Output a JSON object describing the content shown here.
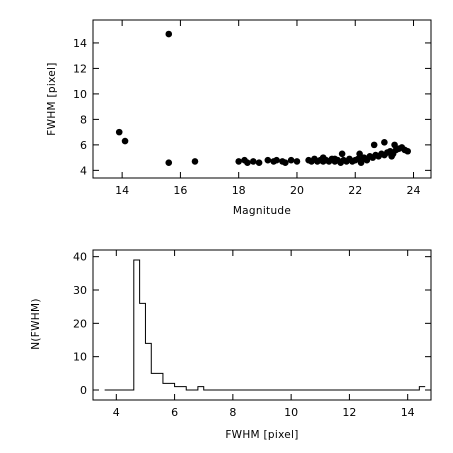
{
  "chart_data": [
    {
      "type": "scatter",
      "title": "",
      "xlabel": "Magnitude",
      "ylabel": "FWHM [pixel]",
      "xlim": [
        13,
        24.6
      ],
      "ylim": [
        3.4,
        15.8
      ],
      "xticks": [
        14,
        16,
        18,
        20,
        22,
        24
      ],
      "xtick_labels": [
        "14",
        "16",
        "18",
        "20",
        "22",
        "24"
      ],
      "yticks": [
        4,
        6,
        8,
        10,
        12,
        14
      ],
      "ytick_labels": [
        "4",
        "6",
        "8",
        "10",
        "12",
        "14"
      ],
      "grid": false,
      "marker_color": "#000000",
      "points": [
        [
          13.9,
          7.0
        ],
        [
          14.1,
          6.3
        ],
        [
          15.6,
          14.7
        ],
        [
          15.6,
          4.6
        ],
        [
          16.5,
          4.7
        ],
        [
          18.0,
          4.7
        ],
        [
          18.2,
          4.8
        ],
        [
          18.3,
          4.6
        ],
        [
          18.5,
          4.7
        ],
        [
          18.7,
          4.6
        ],
        [
          19.0,
          4.8
        ],
        [
          19.2,
          4.7
        ],
        [
          19.3,
          4.8
        ],
        [
          19.5,
          4.7
        ],
        [
          19.6,
          4.6
        ],
        [
          19.8,
          4.8
        ],
        [
          20.0,
          4.7
        ],
        [
          20.4,
          4.8
        ],
        [
          20.5,
          4.7
        ],
        [
          20.6,
          4.9
        ],
        [
          20.7,
          4.7
        ],
        [
          20.8,
          4.8
        ],
        [
          20.9,
          4.7
        ],
        [
          21.0,
          4.8
        ],
        [
          21.1,
          4.7
        ],
        [
          21.2,
          4.9
        ],
        [
          21.3,
          4.7
        ],
        [
          21.4,
          4.8
        ],
        [
          21.5,
          4.6
        ],
        [
          21.6,
          4.8
        ],
        [
          21.7,
          4.7
        ],
        [
          21.8,
          4.9
        ],
        [
          21.9,
          4.7
        ],
        [
          22.0,
          4.8
        ],
        [
          22.1,
          4.9
        ],
        [
          22.2,
          4.6
        ],
        [
          22.3,
          5.0
        ],
        [
          22.4,
          4.8
        ],
        [
          22.5,
          5.1
        ],
        [
          22.6,
          5.0
        ],
        [
          22.7,
          5.2
        ],
        [
          22.8,
          5.1
        ],
        [
          22.9,
          5.3
        ],
        [
          23.0,
          5.2
        ],
        [
          23.1,
          5.4
        ],
        [
          23.2,
          5.5
        ],
        [
          23.3,
          5.3
        ],
        [
          23.4,
          5.6
        ],
        [
          23.5,
          5.7
        ],
        [
          23.6,
          5.8
        ],
        [
          23.7,
          5.6
        ],
        [
          23.8,
          5.5
        ],
        [
          21.55,
          5.3
        ],
        [
          22.15,
          5.3
        ],
        [
          22.65,
          6.0
        ],
        [
          23.0,
          6.2
        ],
        [
          23.35,
          6.0
        ],
        [
          23.25,
          5.1
        ],
        [
          22.35,
          4.9
        ],
        [
          20.9,
          5.0
        ],
        [
          21.3,
          4.9
        ]
      ]
    },
    {
      "type": "histogram",
      "title": "",
      "xlabel": "FWHM [pixel]",
      "ylabel": "N(FWHM)",
      "xlim": [
        3.2,
        14.8
      ],
      "ylim": [
        -3,
        42
      ],
      "xticks": [
        4,
        6,
        8,
        10,
        12,
        14
      ],
      "xtick_labels": [
        "4",
        "6",
        "8",
        "10",
        "12",
        "14"
      ],
      "yticks": [
        0,
        10,
        20,
        30,
        40
      ],
      "ytick_labels": [
        "0",
        "10",
        "20",
        "30",
        "40"
      ],
      "grid": false,
      "bin_width": 0.2,
      "bin_start": 3.6,
      "bins": [
        [
          3.6,
          0
        ],
        [
          3.8,
          0
        ],
        [
          4.0,
          0
        ],
        [
          4.2,
          0
        ],
        [
          4.4,
          0
        ],
        [
          4.6,
          39
        ],
        [
          4.8,
          26
        ],
        [
          5.0,
          14
        ],
        [
          5.2,
          5
        ],
        [
          5.4,
          5
        ],
        [
          5.6,
          2
        ],
        [
          5.8,
          2
        ],
        [
          6.0,
          1
        ],
        [
          6.2,
          1
        ],
        [
          6.4,
          0
        ],
        [
          6.6,
          0
        ],
        [
          6.8,
          1
        ],
        [
          7.0,
          0
        ],
        [
          7.2,
          0
        ],
        [
          14.4,
          1
        ]
      ],
      "x_end": 14.6
    }
  ]
}
